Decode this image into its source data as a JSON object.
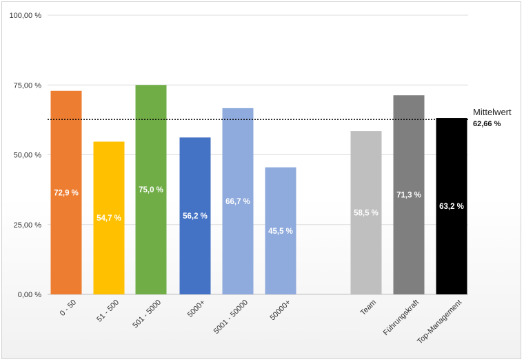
{
  "chart_data": {
    "type": "bar",
    "title": "",
    "xlabel": "",
    "ylabel": "",
    "ylim": [
      0,
      100
    ],
    "y_ticks": [
      "0,00 %",
      "25,00 %",
      "50,00 %",
      "75,00 %",
      "100,00 %"
    ],
    "y_tick_values": [
      0,
      25,
      50,
      75,
      100
    ],
    "grid": true,
    "categories": [
      "0 - 50",
      "51 - 500",
      "501 - 5000",
      "5000+",
      "5001 - 50000",
      "50000+",
      "Team",
      "Führungskraft",
      "Top-Management"
    ],
    "values": [
      72.9,
      54.7,
      75.0,
      56.2,
      66.7,
      45.5,
      58.5,
      71.3,
      63.2
    ],
    "data_labels": [
      "72,9 %",
      "54,7 %",
      "75,0 %",
      "56,2 %",
      "66,7 %",
      "45,5 %",
      "58,5 %",
      "71,3 %",
      "63,2 %"
    ],
    "colors": [
      "#ed7d31",
      "#ffc000",
      "#70ad47",
      "#4472c4",
      "#8faadc",
      "#8faadc",
      "#bfbfbf",
      "#7f7f7f",
      "#000000"
    ],
    "average": {
      "label": "Mittelwert",
      "value": 62.66,
      "value_label": "62,66 %"
    }
  }
}
